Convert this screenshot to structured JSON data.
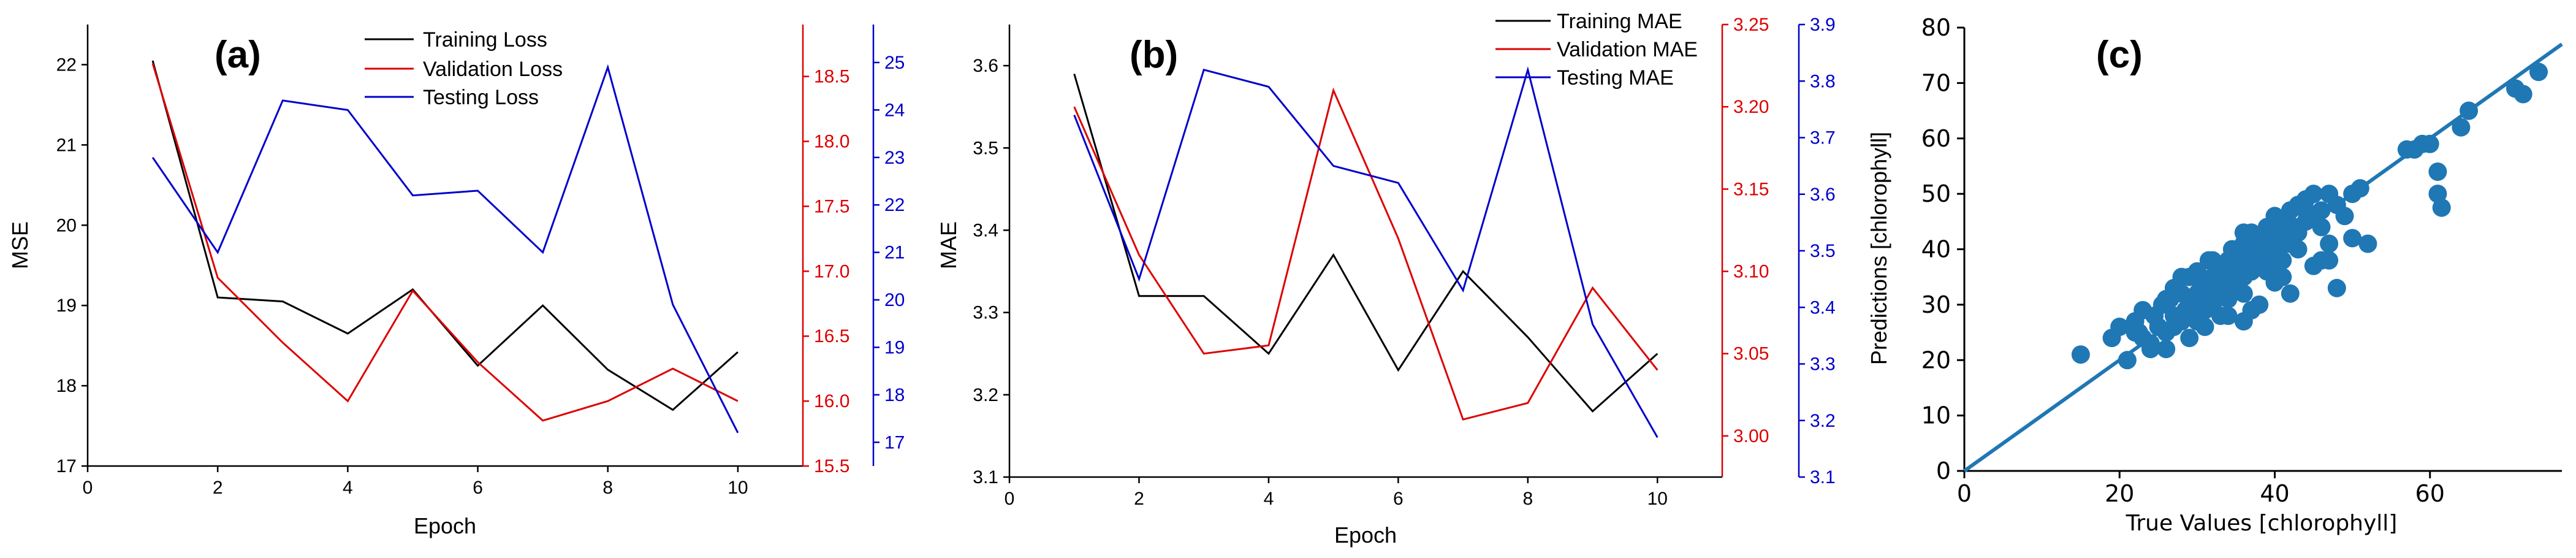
{
  "chart_data": [
    {
      "panel_label": "(a)",
      "type": "line",
      "xlabel": "Epoch",
      "ylabel": "MSE",
      "x_ticks": [
        0,
        2,
        4,
        6,
        8,
        10
      ],
      "x_range": [
        0,
        11
      ],
      "left_axis": {
        "range": [
          17,
          22.5
        ],
        "ticks": [
          17,
          18,
          19,
          20,
          21,
          22
        ],
        "color": "#000000"
      },
      "right_axis_1": {
        "range": [
          15.5,
          18.9
        ],
        "ticks": [
          15.5,
          16.0,
          16.5,
          17.0,
          17.5,
          18.0,
          18.5
        ],
        "color": "#dd0000"
      },
      "right_axis_2": {
        "range": [
          16.5,
          25.8
        ],
        "ticks": [
          17,
          18,
          19,
          20,
          21,
          22,
          23,
          24,
          25
        ],
        "color": "#0000cc"
      },
      "series": [
        {
          "name": "Training Loss",
          "color": "#000000",
          "axis": "left",
          "x": [
            1,
            2,
            3,
            4,
            5,
            6,
            7,
            8,
            9,
            10
          ],
          "values": [
            22.05,
            19.1,
            19.05,
            18.65,
            19.2,
            18.25,
            19.0,
            18.2,
            17.7,
            18.42
          ]
        },
        {
          "name": "Validation Loss",
          "color": "#dd0000",
          "axis": "right_1",
          "x": [
            1,
            2,
            3,
            4,
            5,
            6,
            7,
            8,
            9,
            10
          ],
          "values": [
            18.6,
            16.95,
            16.45,
            16.0,
            16.85,
            16.3,
            15.85,
            16.0,
            16.25,
            16.0
          ]
        },
        {
          "name": "Testing Loss",
          "color": "#0000cc",
          "axis": "right_2",
          "x": [
            1,
            2,
            3,
            4,
            5,
            6,
            7,
            8,
            9,
            10
          ],
          "values": [
            23.0,
            21.0,
            24.2,
            24.0,
            22.2,
            22.3,
            21.0,
            24.9,
            19.9,
            17.2
          ]
        }
      ]
    },
    {
      "panel_label": "(b)",
      "type": "line",
      "xlabel": "Epoch",
      "ylabel": "MAE",
      "x_ticks": [
        0,
        2,
        4,
        6,
        8,
        10
      ],
      "x_range": [
        0,
        11
      ],
      "left_axis": {
        "range": [
          3.1,
          3.65
        ],
        "ticks": [
          3.1,
          3.2,
          3.3,
          3.4,
          3.5,
          3.6
        ],
        "color": "#000000"
      },
      "right_axis_1": {
        "range": [
          2.975,
          3.25
        ],
        "ticks": [
          3.0,
          3.05,
          3.1,
          3.15,
          3.2,
          3.25
        ],
        "color": "#dd0000"
      },
      "right_axis_2": {
        "range": [
          3.1,
          3.9
        ],
        "ticks": [
          3.1,
          3.2,
          3.3,
          3.4,
          3.5,
          3.6,
          3.7,
          3.8,
          3.9
        ],
        "color": "#0000cc"
      },
      "series": [
        {
          "name": "Training MAE",
          "color": "#000000",
          "axis": "left",
          "x": [
            1,
            2,
            3,
            4,
            5,
            6,
            7,
            8,
            9,
            10
          ],
          "values": [
            3.59,
            3.32,
            3.32,
            3.25,
            3.37,
            3.23,
            3.35,
            3.27,
            3.18,
            3.25
          ]
        },
        {
          "name": "Validation MAE",
          "color": "#dd0000",
          "axis": "right_1",
          "x": [
            1,
            2,
            3,
            4,
            5,
            6,
            7,
            8,
            9,
            10
          ],
          "values": [
            3.2,
            3.11,
            3.05,
            3.055,
            3.21,
            3.12,
            3.01,
            3.02,
            3.09,
            3.04
          ]
        },
        {
          "name": "Testing MAE",
          "color": "#0000cc",
          "axis": "right_2",
          "x": [
            1,
            2,
            3,
            4,
            5,
            6,
            7,
            8,
            9,
            10
          ],
          "values": [
            3.74,
            3.45,
            3.82,
            3.79,
            3.65,
            3.62,
            3.43,
            3.82,
            3.37,
            3.17
          ]
        }
      ]
    },
    {
      "panel_label": "(c)",
      "type": "scatter",
      "xlabel": "True Values [chlorophyll]",
      "ylabel": "Predictions [chlorophyll]",
      "x_range": [
        0,
        77
      ],
      "y_range": [
        0,
        80
      ],
      "x_ticks": [
        0,
        20,
        40,
        60
      ],
      "y_ticks": [
        0,
        10,
        20,
        30,
        40,
        50,
        60,
        70,
        80
      ],
      "point_color": "#1f77b4",
      "fit_line": {
        "from": [
          0,
          0
        ],
        "to": [
          77,
          77
        ]
      },
      "points": {
        "x": [
          15,
          19,
          20,
          21,
          22,
          22.5,
          23,
          24,
          24.5,
          25,
          25.5,
          26,
          26.5,
          27,
          27,
          28,
          28,
          28.5,
          29,
          29,
          29.5,
          30,
          30,
          30.5,
          31,
          31,
          31.5,
          32,
          32,
          32.5,
          33,
          33,
          33.5,
          34,
          34,
          34.5,
          35,
          35,
          35.5,
          36,
          36,
          36.5,
          37,
          37,
          37.5,
          38,
          38,
          38.5,
          39,
          39,
          39.5,
          40,
          40,
          40.5,
          41,
          41,
          41.5,
          42,
          42,
          42.5,
          43,
          43,
          44,
          44,
          45,
          45,
          46,
          46,
          47,
          48,
          49,
          50,
          51,
          23,
          27,
          30,
          34,
          38,
          42,
          26,
          31,
          36,
          40,
          45,
          24,
          29,
          33,
          37,
          41,
          46,
          35,
          39,
          43,
          28,
          32,
          36,
          40,
          44,
          47,
          30,
          34,
          38,
          42,
          36,
          40,
          44,
          33,
          37,
          41,
          47,
          48,
          50,
          52,
          57,
          58,
          59,
          60,
          61,
          61,
          61.5,
          64,
          65,
          71,
          72,
          74,
          22,
          26,
          31,
          36
        ],
        "y": [
          21,
          24,
          26,
          20,
          27,
          25,
          29,
          22,
          28,
          26,
          30,
          25,
          31,
          28,
          33,
          27,
          32,
          29,
          30,
          35,
          28,
          31,
          36,
          33,
          29,
          34,
          38,
          30,
          35,
          32,
          37,
          33,
          36,
          31,
          38,
          40,
          34,
          39,
          36,
          35,
          41,
          38,
          36,
          43,
          40,
          37,
          42,
          39,
          38,
          44,
          41,
          37,
          43,
          40,
          38,
          45,
          42,
          41,
          47,
          44,
          43,
          48,
          45,
          49,
          46,
          50,
          44,
          47,
          41,
          48,
          46,
          50,
          51,
          24,
          26,
          27,
          28,
          30,
          32,
          22,
          26,
          32,
          34,
          37,
          23,
          24,
          28,
          29,
          35,
          38,
          33,
          36,
          40,
          35,
          38,
          43,
          45,
          47,
          50,
          32,
          36,
          39,
          42,
          40,
          46,
          49,
          35,
          39,
          44,
          38,
          33,
          42,
          41,
          58,
          58,
          59,
          59,
          54,
          50,
          47.5,
          62,
          65,
          69,
          68,
          72,
          25,
          31,
          33,
          27
        ]
      }
    }
  ]
}
